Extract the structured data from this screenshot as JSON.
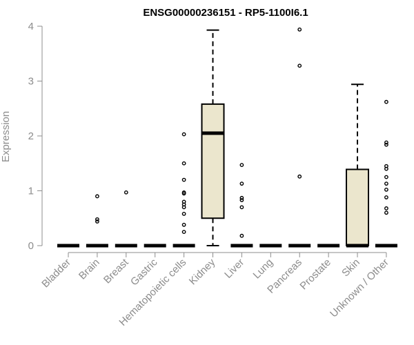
{
  "chart_data": {
    "type": "boxplot",
    "title": "ENSG00000236151 - RP5-1100I6.1",
    "ylabel": "Expression",
    "xlabel": "",
    "ylim": [
      0,
      4
    ],
    "yticks": [
      0,
      1,
      2,
      3,
      4
    ],
    "box_fill": "#ebe6cd",
    "categories": [
      "Bladder",
      "Brain",
      "Breast",
      "Gastric",
      "Hematopoietic cells",
      "Kidney",
      "Liver",
      "Lung",
      "Pancreas",
      "Prostate",
      "Skin",
      "Unknown / Other"
    ],
    "boxes": [
      {
        "category": "Bladder",
        "whisker_low": 0,
        "q1": 0,
        "median": 0,
        "q3": 0,
        "whisker_high": 0,
        "outliers": []
      },
      {
        "category": "Brain",
        "whisker_low": 0,
        "q1": 0,
        "median": 0,
        "q3": 0,
        "whisker_high": 0,
        "outliers": [
          0.9,
          0.48,
          0.44
        ]
      },
      {
        "category": "Breast",
        "whisker_low": 0,
        "q1": 0,
        "median": 0,
        "q3": 0,
        "whisker_high": 0,
        "outliers": [
          0.97
        ]
      },
      {
        "category": "Gastric",
        "whisker_low": 0,
        "q1": 0,
        "median": 0,
        "q3": 0,
        "whisker_high": 0,
        "outliers": []
      },
      {
        "category": "Hematopoietic cells",
        "whisker_low": 0,
        "q1": 0,
        "median": 0,
        "q3": 0,
        "whisker_high": 0,
        "outliers": [
          2.03,
          1.5,
          1.2,
          0.97,
          0.95,
          0.8,
          0.75,
          0.7,
          0.58,
          0.38,
          0.25
        ]
      },
      {
        "category": "Kidney",
        "whisker_low": 0,
        "q1": 0.5,
        "median": 2.05,
        "q3": 2.58,
        "whisker_high": 3.93,
        "outliers": []
      },
      {
        "category": "Liver",
        "whisker_low": 0,
        "q1": 0,
        "median": 0,
        "q3": 0,
        "whisker_high": 0,
        "outliers": [
          1.47,
          1.13,
          0.87,
          0.83,
          0.7,
          0.18
        ]
      },
      {
        "category": "Lung",
        "whisker_low": 0,
        "q1": 0,
        "median": 0,
        "q3": 0,
        "whisker_high": 0,
        "outliers": []
      },
      {
        "category": "Pancreas",
        "whisker_low": 0,
        "q1": 0,
        "median": 0,
        "q3": 0,
        "whisker_high": 0,
        "outliers": [
          3.94,
          3.28,
          1.26
        ]
      },
      {
        "category": "Prostate",
        "whisker_low": 0,
        "q1": 0,
        "median": 0,
        "q3": 0,
        "whisker_high": 0,
        "outliers": []
      },
      {
        "category": "Skin",
        "whisker_low": 0,
        "q1": 0,
        "median": 0,
        "q3": 1.39,
        "whisker_high": 2.94,
        "outliers": []
      },
      {
        "category": "Unknown / Other",
        "whisker_low": 0,
        "q1": 0,
        "median": 0,
        "q3": 0,
        "whisker_high": 0,
        "outliers": [
          2.62,
          1.88,
          1.84,
          1.45,
          1.4,
          1.25,
          1.13,
          1.02,
          0.88,
          0.68,
          0.6
        ]
      }
    ]
  }
}
